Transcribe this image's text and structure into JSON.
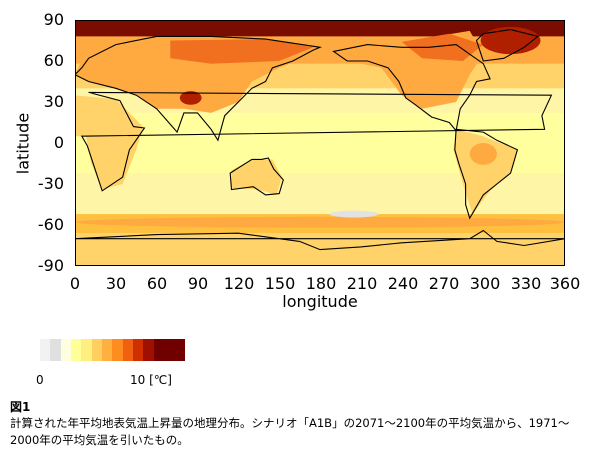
{
  "map": {
    "xlabel": "longitude",
    "ylabel": "latitude",
    "xticks": [
      "0",
      "30",
      "60",
      "90",
      "120",
      "150",
      "180",
      "210",
      "240",
      "270",
      "300",
      "330",
      "360"
    ],
    "yticks": [
      "90",
      "60",
      "30",
      "0",
      "-30",
      "-60",
      "-90"
    ],
    "xrange": [
      0,
      360
    ],
    "yrange": [
      -90,
      90
    ]
  },
  "colorbar": {
    "label_zero": "0",
    "label_ten": "10 [℃]",
    "colors": [
      "#f2f2f2",
      "#e0e0e0",
      "#ffffe0",
      "#ffff99",
      "#ffef80",
      "#ffd060",
      "#ffb040",
      "#ff8c20",
      "#f06010",
      "#d03000",
      "#a01000",
      "#700000",
      "#700000",
      "#700000"
    ]
  },
  "map_colors": {
    "bg": "#fff5a6",
    "band_light": "#ffff9e",
    "band_mid": "#ffd36a",
    "band_orange": "#ffaa40",
    "band_deep": "#f07020",
    "polar": "#7a0d00",
    "polar2": "#b02000",
    "southern_belt": "#ffc040",
    "gray_patch": "#e2e2e2",
    "coast": "#000000"
  },
  "caption": {
    "figure_label": "図1",
    "text": "計算された年平均地表気温上昇量の地理分布。シナリオ「A1B」の2071～2100年の平均気温から、1971～2000年の平均気温を引いたもの。"
  }
}
